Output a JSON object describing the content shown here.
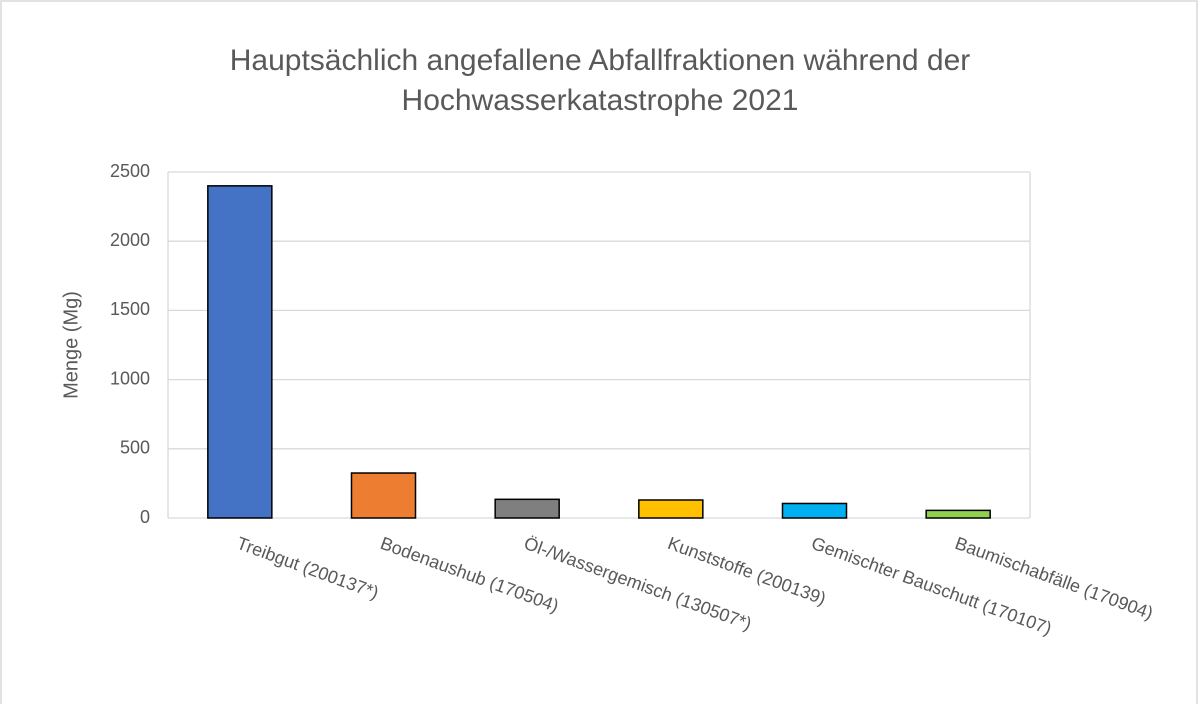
{
  "chart_data": {
    "type": "bar",
    "title": [
      "Hauptsächlich angefallene Abfallfraktionen während der",
      "Hochwasserkatastrophe 2021"
    ],
    "y_label": "Menge (Mg)",
    "categories": [
      "Treibgut (200137*)",
      "Bodenaushub (170504)",
      "Öl-/Wassergemisch (130507*)",
      "Kunststoffe (200139)",
      "Gemischter Bauschutt (170107)",
      "Baumischabfälle (170904)"
    ],
    "values": [
      2400,
      325,
      135,
      130,
      105,
      55
    ],
    "colors": [
      "#4472c4",
      "#ed7d31",
      "#7f7f7f",
      "#ffc000",
      "#00b0f0",
      "#92d050"
    ],
    "ylim": [
      0,
      2500
    ],
    "yticks": [
      0,
      500,
      1000,
      1500,
      2000,
      2500
    ],
    "grid": true
  }
}
